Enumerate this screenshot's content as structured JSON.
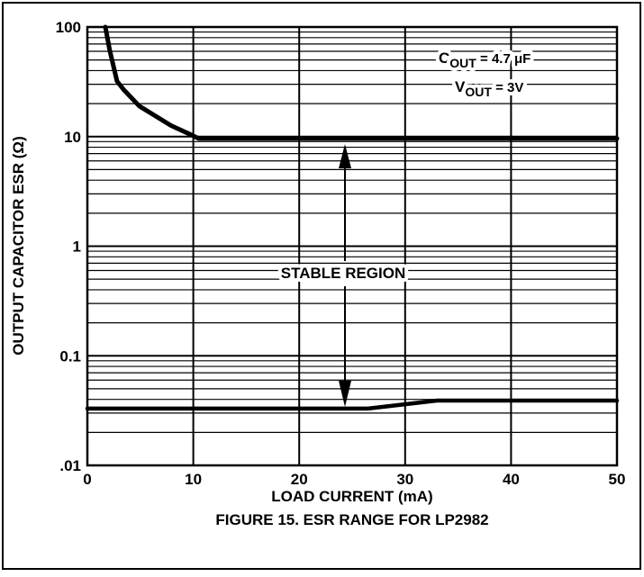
{
  "chart_data": {
    "type": "line",
    "title": "FIGURE 15.  ESR RANGE FOR LP2982",
    "x_label": "LOAD CURRENT (mA)",
    "y_label": "OUTPUT CAPACITOR ESR (Ω)",
    "log_y": true,
    "grid": true,
    "minor_grid": true,
    "xlim": [
      0,
      50
    ],
    "xticks": [
      0,
      10,
      20,
      30,
      40,
      50
    ],
    "ylim": [
      0.01,
      100
    ],
    "yticks": [
      {
        "value": 0.01,
        "label": ".01"
      },
      0.1,
      1,
      10,
      100
    ],
    "series": [
      {
        "color": "#000000",
        "x": [
          1.7,
          2.1,
          2.8,
          3.4,
          4.9,
          7.9,
          9.6,
          10.5,
          50
        ],
        "values": [
          100,
          62,
          32,
          27,
          19,
          12.6,
          10.6,
          9.6,
          9.6
        ]
      },
      {
        "color": "#000000",
        "x": [
          0,
          26.5,
          33,
          50
        ],
        "values": [
          0.033,
          0.033,
          0.039,
          0.039
        ]
      }
    ],
    "annotations": [
      {
        "text": "C",
        "subscript": "OUT",
        "suffix": " = 4.7 μF"
      },
      {
        "text": "V",
        "subscript": "OUT",
        "suffix": " = 3V"
      },
      {
        "text": "STABLE REGION"
      }
    ]
  }
}
